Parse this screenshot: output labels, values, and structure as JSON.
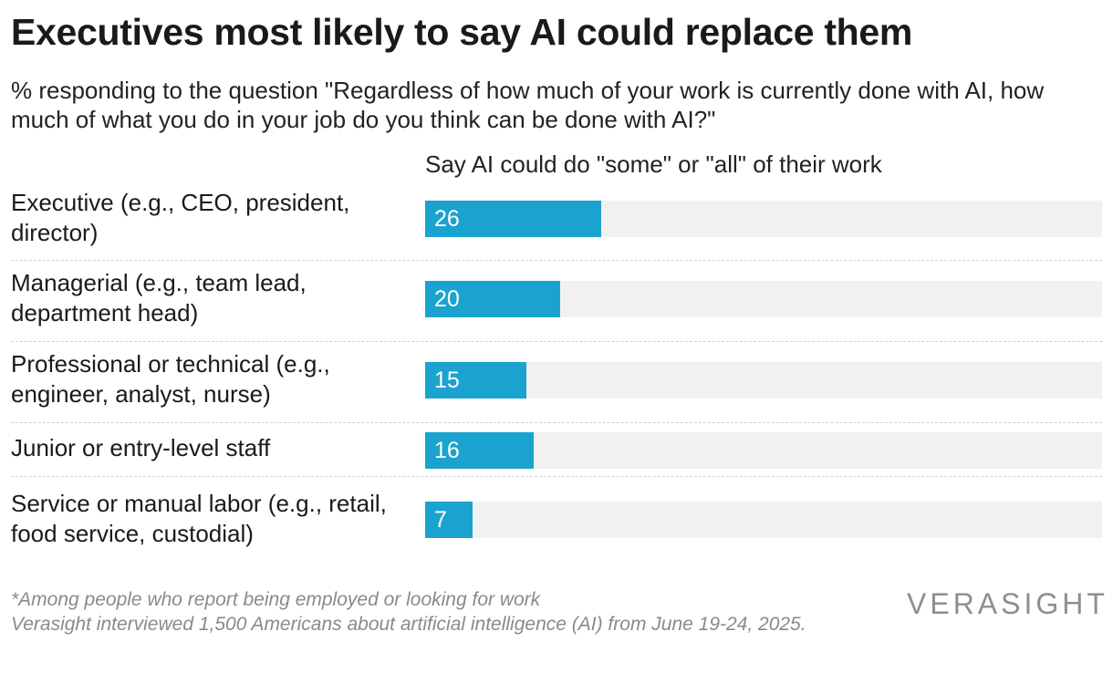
{
  "title": "Executives most likely to say AI could replace them",
  "subtitle": "% responding to the question \"Regardless of how much of your work is currently done with AI, how much of what you do in your job do you think can be done with AI?\"",
  "chart_data": {
    "type": "bar",
    "orientation": "horizontal",
    "column_header": "Say AI could do \"some\" or \"all\" of their work",
    "categories": [
      "Executive (e.g., CEO, president, director)",
      "Managerial (e.g., team lead, department head)",
      "Professional or technical (e.g., engineer, analyst, nurse)",
      "Junior or entry-level staff",
      "Service or manual labor (e.g., retail, food service, custodial)"
    ],
    "values": [
      26,
      20,
      15,
      16,
      7
    ],
    "xlim": [
      0,
      100
    ],
    "bar_color": "#1ba3d0",
    "track_color": "#f1f1f1",
    "grid": false
  },
  "footnote": {
    "line1": "*Among people who report being employed or looking for work",
    "line2": "Verasight interviewed 1,500 Americans about artificial intelligence (AI) from June 19-24, 2025."
  },
  "logo_text": "VERASIGHT"
}
